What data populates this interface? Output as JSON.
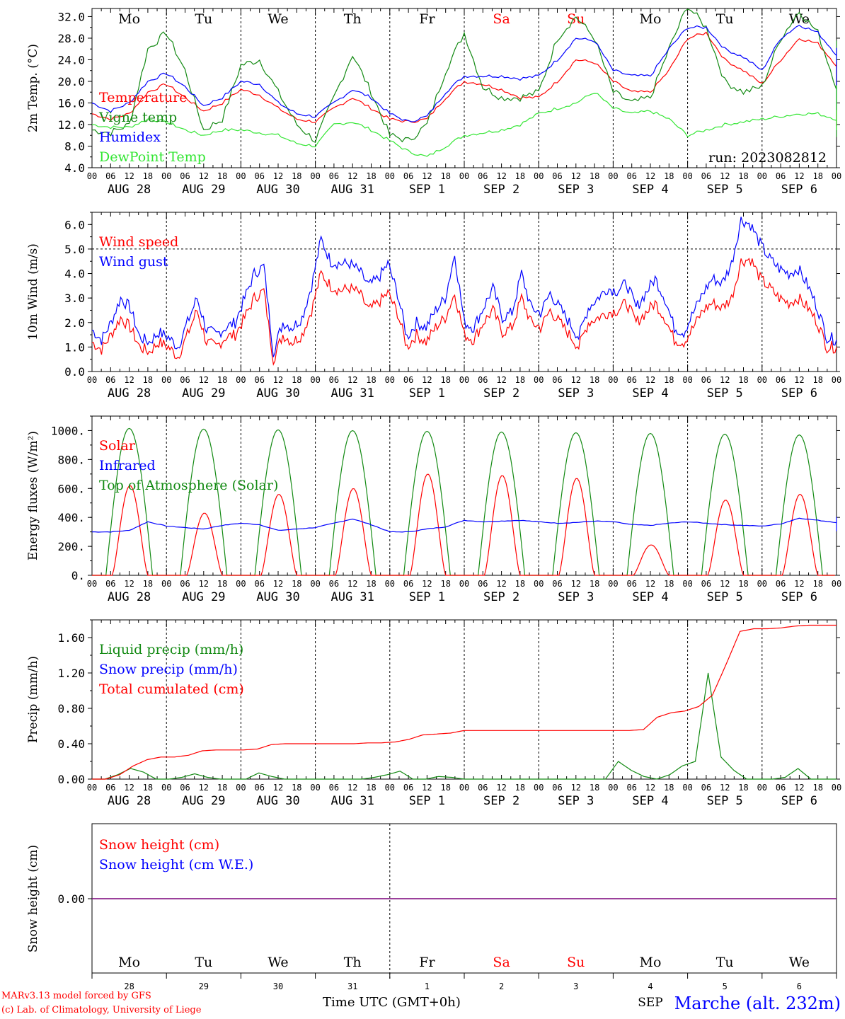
{
  "footer": {
    "model": "MARv3.13 model forced by GFS",
    "lab": "(c) Lab. of Climatology, University of Liege",
    "time_label": "Time UTC (GMT+0h)",
    "station": "Marche (alt. 232m)"
  },
  "colors": {
    "red": "#ff0000",
    "green": "#138a13",
    "blue": "#0000ff",
    "lime": "#33e633",
    "purple": "#7a007a",
    "axis": "#000000"
  },
  "time_axis": {
    "hour_labels": [
      "00",
      "06",
      "12",
      "18"
    ],
    "end_label": "00",
    "date_labels": [
      "AUG 28",
      "AUG 29",
      "AUG 30",
      "AUG 31",
      "SEP  1",
      "SEP  2",
      "SEP  3",
      "SEP  4",
      "SEP  5",
      "SEP  6"
    ],
    "weekdays": [
      "Mo",
      "Tu",
      "We",
      "Th",
      "Fr",
      "Sa",
      "Su",
      "Mo",
      "Tu",
      "We"
    ],
    "weekend_days": [
      5,
      6
    ],
    "day_numbers": [
      "28",
      "29",
      "30",
      "31",
      "1",
      "2",
      "3",
      "4",
      "5",
      "6"
    ],
    "month_marker": "SEP"
  },
  "chart_data": [
    {
      "type": "line",
      "name": "temperature",
      "ylabel": "2m Temp. (°C)",
      "ylim": [
        4,
        33.5
      ],
      "yticks": [
        "4.0",
        "8.0",
        "12.0",
        "16.0",
        "20.0",
        "24.0",
        "28.0",
        "32.0"
      ],
      "legend": [
        "Temperature",
        "Vigne temp",
        "Humidex",
        "DewPoint Temp"
      ],
      "run_label": "run: 2023082812",
      "x_hours_step": 6,
      "series": [
        {
          "name": "Temperature",
          "color": "red",
          "values": [
            14,
            13,
            14,
            18,
            19.5,
            17,
            14.5,
            16,
            18.5,
            17.5,
            15,
            13,
            12.5,
            15,
            17,
            15,
            13,
            12.5,
            13,
            17,
            20,
            19.5,
            18.5,
            17,
            17,
            20,
            24,
            23.5,
            20,
            18,
            18,
            22,
            28,
            29,
            24,
            22,
            19.5,
            24,
            28,
            27,
            23,
            21,
            21,
            22,
            23.5,
            20,
            17,
            15,
            14.5,
            16,
            19.5,
            17,
            14,
            12.5,
            12,
            14,
            17,
            15,
            13,
            12.5
          ]
        },
        {
          "name": "Vigne temp",
          "color": "green",
          "values": [
            11,
            10.5,
            12,
            26,
            29,
            22,
            11,
            13,
            23,
            24,
            18,
            12,
            9,
            17,
            25,
            18,
            10,
            9,
            12,
            22,
            29,
            19,
            17,
            17,
            18,
            28,
            32,
            28,
            18,
            16,
            17,
            26,
            34,
            30,
            20,
            18,
            19,
            28,
            33,
            29,
            19,
            18,
            19,
            24,
            27,
            20,
            15,
            14,
            16,
            24,
            27,
            18,
            13,
            12,
            11.5,
            13,
            22,
            16,
            11,
            10
          ]
        },
        {
          "name": "Humidex",
          "color": "blue",
          "values": [
            16,
            14.5,
            16,
            20,
            21.5,
            19,
            15.5,
            17,
            20,
            19.5,
            16,
            14,
            13.5,
            16,
            18.5,
            17,
            14,
            12.5,
            13.5,
            18,
            21,
            21,
            21,
            20.5,
            21,
            24,
            28,
            27.5,
            22,
            21,
            21,
            26,
            30,
            30,
            26,
            24.5,
            22,
            28,
            30.5,
            29,
            25,
            24,
            24,
            25.5,
            26,
            24,
            21,
            19,
            20,
            23,
            25,
            21,
            17,
            15.5,
            15,
            16.5,
            20,
            19,
            17,
            15.5
          ]
        },
        {
          "name": "DewPoint Temp",
          "color": "lime",
          "values": [
            12,
            11.5,
            11.5,
            13,
            12.5,
            11,
            10,
            11,
            11,
            10.5,
            10,
            8.5,
            8,
            12,
            12.5,
            11,
            9,
            7,
            6,
            8,
            10,
            10.5,
            11,
            12,
            14,
            15,
            16,
            18,
            15,
            14,
            14.5,
            13,
            10,
            11,
            12,
            12.5,
            13,
            13.5,
            14,
            14,
            13,
            13,
            13.5,
            14,
            15,
            18,
            19,
            18,
            17,
            17,
            17.5,
            17,
            15,
            13,
            12.5,
            13,
            14,
            13.5,
            12,
            11
          ]
        }
      ]
    },
    {
      "type": "line",
      "name": "wind",
      "ylabel": "10m Wind (m/s)",
      "ylim": [
        0,
        6.5
      ],
      "yticks": [
        "0.0",
        "1.0",
        "2.0",
        "3.0",
        "4.0",
        "5.0",
        "6.0"
      ],
      "ref_line": 5.0,
      "legend": [
        "Wind speed",
        "Wind gust"
      ],
      "x_hours_step": 6,
      "series": [
        {
          "name": "Wind speed",
          "color": "red",
          "values": [
            1.2,
            0.9,
            1.5,
            2.2,
            1.8,
            1.0,
            0.8,
            1.2,
            1.0,
            0.6,
            1.5,
            2.5,
            1.2,
            1.0,
            1.4,
            1.5,
            2.2,
            3.0,
            3.3,
            0.5,
            1.5,
            1.2,
            1.5,
            2.5,
            4.0,
            3.5,
            3.3,
            3.4,
            3.2,
            2.5,
            2.8,
            3.2,
            2.4,
            1.0,
            1.5,
            1.2,
            1.8,
            2.2,
            3.2,
            1.5,
            1.3,
            2.0,
            2.5,
            1.6,
            1.8,
            3.0,
            2.0,
            1.8,
            2.5,
            2.0,
            1.5,
            1.0,
            2.0,
            2.2,
            2.4,
            2.5,
            2.8,
            2.0,
            2.4,
            2.8,
            2.2,
            1.3,
            1.2,
            1.8,
            2.5,
            2.8,
            2.6,
            3.0,
            4.5,
            4.6,
            3.8,
            3.4,
            3.0,
            2.8,
            3.0,
            2.6,
            2.0,
            1.0,
            1.0
          ]
        },
        {
          "name": "Wind gust",
          "color": "blue",
          "values": [
            1.7,
            1.3,
            2.0,
            3.0,
            2.6,
            1.4,
            1.2,
            1.6,
            1.4,
            1.0,
            2.0,
            3.0,
            1.7,
            1.5,
            1.8,
            2.0,
            3.0,
            4.0,
            4.3,
            0.8,
            2.0,
            1.8,
            2.2,
            3.5,
            5.4,
            4.5,
            4.4,
            4.4,
            4.1,
            3.5,
            3.8,
            4.4,
            3.2,
            1.4,
            2.0,
            1.8,
            2.5,
            3.0,
            4.8,
            2.0,
            1.8,
            2.6,
            3.4,
            2.2,
            2.4,
            4.0,
            2.6,
            2.4,
            3.2,
            2.6,
            2.0,
            1.4,
            2.6,
            3.0,
            3.4,
            3.3,
            3.6,
            2.6,
            3.2,
            3.8,
            3.0,
            1.8,
            1.6,
            2.4,
            3.2,
            3.8,
            3.6,
            4.4,
            6.2,
            6.0,
            5.2,
            4.6,
            4.2,
            4.0,
            4.2,
            3.5,
            2.6,
            1.4,
            1.3
          ]
        }
      ]
    },
    {
      "type": "line",
      "name": "energy",
      "ylabel": "Energy fluxes (W/m²)",
      "ylim": [
        0,
        1100
      ],
      "yticks": [
        "0.",
        "200.",
        "400.",
        "600.",
        "800.",
        "1000."
      ],
      "legend": [
        "Solar",
        "Infrared",
        "Top of Atmosphere (Solar)"
      ],
      "toa_peaks": [
        1015,
        1010,
        1005,
        1000,
        995,
        990,
        985,
        980,
        975,
        970
      ],
      "solar_peaks": [
        620,
        430,
        560,
        600,
        700,
        690,
        670,
        210,
        520,
        560
      ],
      "x_hours_step": 6,
      "series": [
        {
          "name": "Infrared",
          "color": "blue",
          "values": [
            300,
            300,
            310,
            370,
            340,
            330,
            320,
            345,
            360,
            350,
            310,
            320,
            330,
            360,
            390,
            350,
            300,
            300,
            320,
            335,
            380,
            370,
            375,
            380,
            370,
            360,
            365,
            375,
            370,
            350,
            345,
            360,
            370,
            360,
            350,
            345,
            340,
            355,
            395,
            380,
            365,
            370,
            375,
            385,
            405,
            395,
            380,
            370,
            355,
            370,
            395,
            390,
            370,
            360,
            355,
            365,
            380,
            375,
            320,
            305
          ]
        }
      ]
    },
    {
      "type": "line",
      "name": "precip",
      "ylabel": "Precip (mm/h)",
      "ylim": [
        0,
        1.8
      ],
      "yticks": [
        "0.00",
        "0.40",
        "0.80",
        "1.20",
        "1.60"
      ],
      "legend": [
        "Liquid precip (mm/h)",
        "Snow precip (mm/h)",
        "Total cumulated (cm)"
      ],
      "x_hours_step": 6,
      "series": [
        {
          "name": "Total cumulated (cm)",
          "color": "red",
          "values": [
            0,
            0,
            0.05,
            0.15,
            0.22,
            0.25,
            0.25,
            0.27,
            0.32,
            0.33,
            0.33,
            0.33,
            0.34,
            0.39,
            0.4,
            0.4,
            0.4,
            0.4,
            0.4,
            0.4,
            0.41,
            0.41,
            0.42,
            0.45,
            0.5,
            0.51,
            0.52,
            0.55,
            0.55,
            0.55,
            0.55,
            0.55,
            0.55,
            0.55,
            0.55,
            0.55,
            0.55,
            0.55,
            0.55,
            0.55,
            0.56,
            0.7,
            0.75,
            0.77,
            0.82,
            0.95,
            1.3,
            1.67,
            1.7,
            1.7,
            1.71,
            1.73,
            1.74,
            1.74,
            1.74
          ]
        },
        {
          "name": "Liquid precip (mm/h)",
          "color": "green",
          "values": [
            0,
            0,
            0.05,
            0.12,
            0.08,
            0,
            0,
            0.02,
            0.06,
            0.02,
            0,
            0,
            0,
            0.07,
            0.03,
            0,
            0,
            0,
            0,
            0,
            0,
            0,
            0.02,
            0.05,
            0.09,
            0,
            0,
            0.03,
            0.02,
            0,
            0,
            0,
            0,
            0,
            0,
            0,
            0,
            0,
            0,
            0,
            0,
            0.2,
            0.1,
            0.03,
            0,
            0.05,
            0.15,
            0.2,
            1.2,
            0.25,
            0.1,
            0,
            0,
            0,
            0.02,
            0.12,
            0,
            0,
            0
          ]
        }
      ]
    },
    {
      "type": "line",
      "name": "snow",
      "ylabel": "Snow height (cm)",
      "yticks": [
        "0.00"
      ],
      "legend": [
        "Snow height (cm)",
        "Snow height (cm W.E.)"
      ],
      "series": [
        {
          "name": "Snow height (cm)",
          "color": "red",
          "values": [
            0,
            0
          ]
        },
        {
          "name": "Snow height (cm W.E.)",
          "color": "blue",
          "values": [
            0,
            0
          ]
        }
      ]
    }
  ]
}
